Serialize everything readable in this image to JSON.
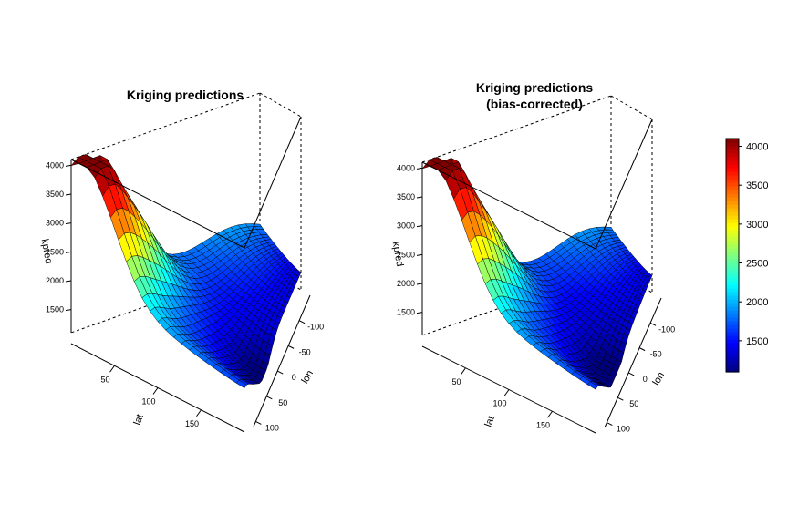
{
  "chart_data": [
    {
      "type": "surface",
      "title": "Kriging predictions",
      "subtitle": "",
      "xlabel": "lat",
      "ylabel": "lon",
      "zlabel": "kpred",
      "x_ticks": [
        "50",
        "100",
        "150"
      ],
      "y_ticks": [
        "-100",
        "-50",
        "0",
        "50",
        "100"
      ],
      "z_ticks": [
        "1500",
        "2000",
        "2500",
        "3000",
        "3500",
        "4000"
      ],
      "xlim": [
        0,
        200
      ],
      "ylim": [
        -150,
        110
      ],
      "zlim": [
        1100,
        4100
      ],
      "grid": false
    },
    {
      "type": "surface",
      "title": "Kriging predictions",
      "subtitle": "(bias-corrected)",
      "xlabel": "lat",
      "ylabel": "lon",
      "zlabel": "kpred",
      "x_ticks": [
        "50",
        "100",
        "150"
      ],
      "y_ticks": [
        "-100",
        "-50",
        "0",
        "50",
        "100"
      ],
      "z_ticks": [
        "1500",
        "2000",
        "2500",
        "3000",
        "3500",
        "4000"
      ],
      "xlim": [
        0,
        200
      ],
      "ylim": [
        -150,
        110
      ],
      "zlim": [
        1100,
        4100
      ],
      "grid": false
    }
  ],
  "colorbar": {
    "ticks": [
      "1500",
      "2000",
      "2500",
      "3000",
      "3500",
      "4000"
    ],
    "range": [
      1100,
      4100
    ],
    "palette": [
      "#00007f",
      "#0000ff",
      "#007fff",
      "#00ffff",
      "#7fff7f",
      "#ffff00",
      "#ff7f00",
      "#ff0000",
      "#7f0000"
    ]
  }
}
